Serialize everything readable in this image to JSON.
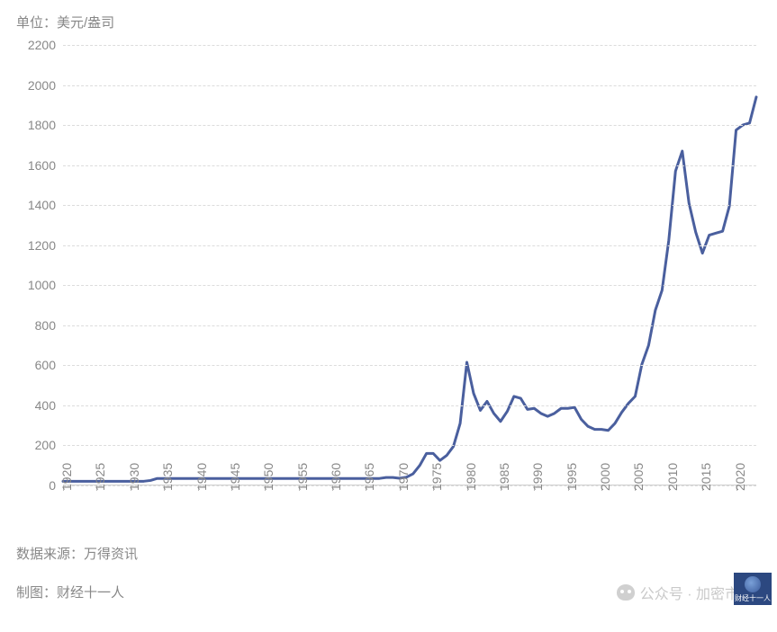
{
  "chart": {
    "type": "line",
    "unit_label": "单位：美元/盎司",
    "background_color": "#ffffff",
    "grid_color": "#dcdcdc",
    "axis_label_color": "#888888",
    "line_color": "#4a5f9e",
    "line_width": 3,
    "ylim": [
      0,
      2200
    ],
    "ytick_step": 200,
    "yticks": [
      0,
      200,
      400,
      600,
      800,
      1000,
      1200,
      1400,
      1600,
      1800,
      2000,
      2200
    ],
    "xlim": [
      1920,
      2023
    ],
    "xticks": [
      1920,
      1925,
      1930,
      1935,
      1940,
      1945,
      1950,
      1955,
      1960,
      1965,
      1970,
      1975,
      1980,
      1985,
      1990,
      1995,
      2000,
      2005,
      2010,
      2015,
      2020
    ],
    "label_fontsize": 14,
    "series": [
      {
        "x": 1920,
        "y": 21
      },
      {
        "x": 1921,
        "y": 21
      },
      {
        "x": 1922,
        "y": 21
      },
      {
        "x": 1923,
        "y": 21
      },
      {
        "x": 1924,
        "y": 21
      },
      {
        "x": 1925,
        "y": 21
      },
      {
        "x": 1926,
        "y": 21
      },
      {
        "x": 1927,
        "y": 21
      },
      {
        "x": 1928,
        "y": 21
      },
      {
        "x": 1929,
        "y": 21
      },
      {
        "x": 1930,
        "y": 21
      },
      {
        "x": 1931,
        "y": 21
      },
      {
        "x": 1932,
        "y": 21
      },
      {
        "x": 1933,
        "y": 25
      },
      {
        "x": 1934,
        "y": 35
      },
      {
        "x": 1935,
        "y": 35
      },
      {
        "x": 1936,
        "y": 35
      },
      {
        "x": 1937,
        "y": 35
      },
      {
        "x": 1938,
        "y": 35
      },
      {
        "x": 1939,
        "y": 35
      },
      {
        "x": 1940,
        "y": 35
      },
      {
        "x": 1941,
        "y": 35
      },
      {
        "x": 1942,
        "y": 35
      },
      {
        "x": 1943,
        "y": 35
      },
      {
        "x": 1944,
        "y": 35
      },
      {
        "x": 1945,
        "y": 35
      },
      {
        "x": 1946,
        "y": 35
      },
      {
        "x": 1947,
        "y": 35
      },
      {
        "x": 1948,
        "y": 35
      },
      {
        "x": 1949,
        "y": 35
      },
      {
        "x": 1950,
        "y": 35
      },
      {
        "x": 1951,
        "y": 35
      },
      {
        "x": 1952,
        "y": 35
      },
      {
        "x": 1953,
        "y": 35
      },
      {
        "x": 1954,
        "y": 35
      },
      {
        "x": 1955,
        "y": 35
      },
      {
        "x": 1956,
        "y": 35
      },
      {
        "x": 1957,
        "y": 35
      },
      {
        "x": 1958,
        "y": 35
      },
      {
        "x": 1959,
        "y": 35
      },
      {
        "x": 1960,
        "y": 35
      },
      {
        "x": 1961,
        "y": 35
      },
      {
        "x": 1962,
        "y": 35
      },
      {
        "x": 1963,
        "y": 35
      },
      {
        "x": 1964,
        "y": 35
      },
      {
        "x": 1965,
        "y": 35
      },
      {
        "x": 1966,
        "y": 35
      },
      {
        "x": 1967,
        "y": 35
      },
      {
        "x": 1968,
        "y": 40
      },
      {
        "x": 1969,
        "y": 40
      },
      {
        "x": 1970,
        "y": 36
      },
      {
        "x": 1971,
        "y": 41
      },
      {
        "x": 1972,
        "y": 58
      },
      {
        "x": 1973,
        "y": 100
      },
      {
        "x": 1974,
        "y": 160
      },
      {
        "x": 1975,
        "y": 160
      },
      {
        "x": 1976,
        "y": 125
      },
      {
        "x": 1977,
        "y": 150
      },
      {
        "x": 1978,
        "y": 195
      },
      {
        "x": 1979,
        "y": 310
      },
      {
        "x": 1980,
        "y": 615
      },
      {
        "x": 1981,
        "y": 460
      },
      {
        "x": 1982,
        "y": 375
      },
      {
        "x": 1983,
        "y": 420
      },
      {
        "x": 1984,
        "y": 360
      },
      {
        "x": 1985,
        "y": 320
      },
      {
        "x": 1986,
        "y": 370
      },
      {
        "x": 1987,
        "y": 445
      },
      {
        "x": 1988,
        "y": 435
      },
      {
        "x": 1989,
        "y": 380
      },
      {
        "x": 1990,
        "y": 385
      },
      {
        "x": 1991,
        "y": 360
      },
      {
        "x": 1992,
        "y": 345
      },
      {
        "x": 1993,
        "y": 360
      },
      {
        "x": 1994,
        "y": 385
      },
      {
        "x": 1995,
        "y": 385
      },
      {
        "x": 1996,
        "y": 390
      },
      {
        "x": 1997,
        "y": 330
      },
      {
        "x": 1998,
        "y": 295
      },
      {
        "x": 1999,
        "y": 280
      },
      {
        "x": 2000,
        "y": 280
      },
      {
        "x": 2001,
        "y": 275
      },
      {
        "x": 2002,
        "y": 310
      },
      {
        "x": 2003,
        "y": 365
      },
      {
        "x": 2004,
        "y": 410
      },
      {
        "x": 2005,
        "y": 445
      },
      {
        "x": 2006,
        "y": 605
      },
      {
        "x": 2007,
        "y": 700
      },
      {
        "x": 2008,
        "y": 875
      },
      {
        "x": 2009,
        "y": 975
      },
      {
        "x": 2010,
        "y": 1225
      },
      {
        "x": 2011,
        "y": 1570
      },
      {
        "x": 2012,
        "y": 1670
      },
      {
        "x": 2013,
        "y": 1410
      },
      {
        "x": 2014,
        "y": 1265
      },
      {
        "x": 2015,
        "y": 1160
      },
      {
        "x": 2016,
        "y": 1250
      },
      {
        "x": 2017,
        "y": 1260
      },
      {
        "x": 2018,
        "y": 1270
      },
      {
        "x": 2019,
        "y": 1395
      },
      {
        "x": 2020,
        "y": 1775
      },
      {
        "x": 2021,
        "y": 1800
      },
      {
        "x": 2022,
        "y": 1810
      },
      {
        "x": 2023,
        "y": 1940
      }
    ]
  },
  "footer": {
    "data_source": "数据来源：万得资讯",
    "credit": "制图：财经十一人"
  },
  "watermark": {
    "text": "公众号 · 加密市场观"
  },
  "logo_text": "财经十一人"
}
